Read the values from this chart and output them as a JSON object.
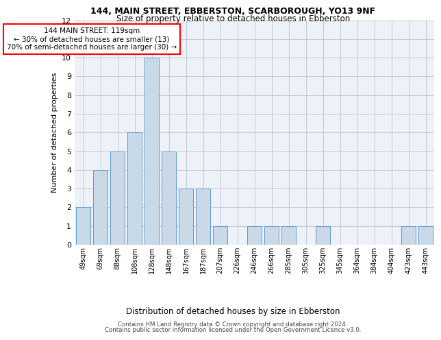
{
  "title_line1": "144, MAIN STREET, EBBERSTON, SCARBOROUGH, YO13 9NF",
  "title_line2": "Size of property relative to detached houses in Ebberston",
  "xlabel": "Distribution of detached houses by size in Ebberston",
  "ylabel": "Number of detached properties",
  "categories": [
    "49sqm",
    "69sqm",
    "88sqm",
    "108sqm",
    "128sqm",
    "148sqm",
    "167sqm",
    "187sqm",
    "207sqm",
    "226sqm",
    "246sqm",
    "266sqm",
    "285sqm",
    "305sqm",
    "325sqm",
    "345sqm",
    "364sqm",
    "384sqm",
    "404sqm",
    "423sqm",
    "443sqm"
  ],
  "values": [
    2,
    4,
    5,
    6,
    10,
    5,
    3,
    3,
    1,
    0,
    1,
    1,
    1,
    0,
    1,
    0,
    0,
    0,
    0,
    1,
    1
  ],
  "bar_color": "#c9d9e8",
  "bar_edge_color": "#5b9bd5",
  "annotation_text": "144 MAIN STREET: 119sqm\n← 30% of detached houses are smaller (13)\n70% of semi-detached houses are larger (30) →",
  "annotation_box_color": "white",
  "annotation_box_edge": "red",
  "ylim": [
    0,
    12
  ],
  "yticks": [
    0,
    1,
    2,
    3,
    4,
    5,
    6,
    7,
    8,
    9,
    10,
    11,
    12
  ],
  "footer_line1": "Contains HM Land Registry data © Crown copyright and database right 2024.",
  "footer_line2": "Contains public sector information licensed under the Open Government Licence v3.0.",
  "grid_color": "#b0b8c8",
  "bg_color": "#eef2f8"
}
